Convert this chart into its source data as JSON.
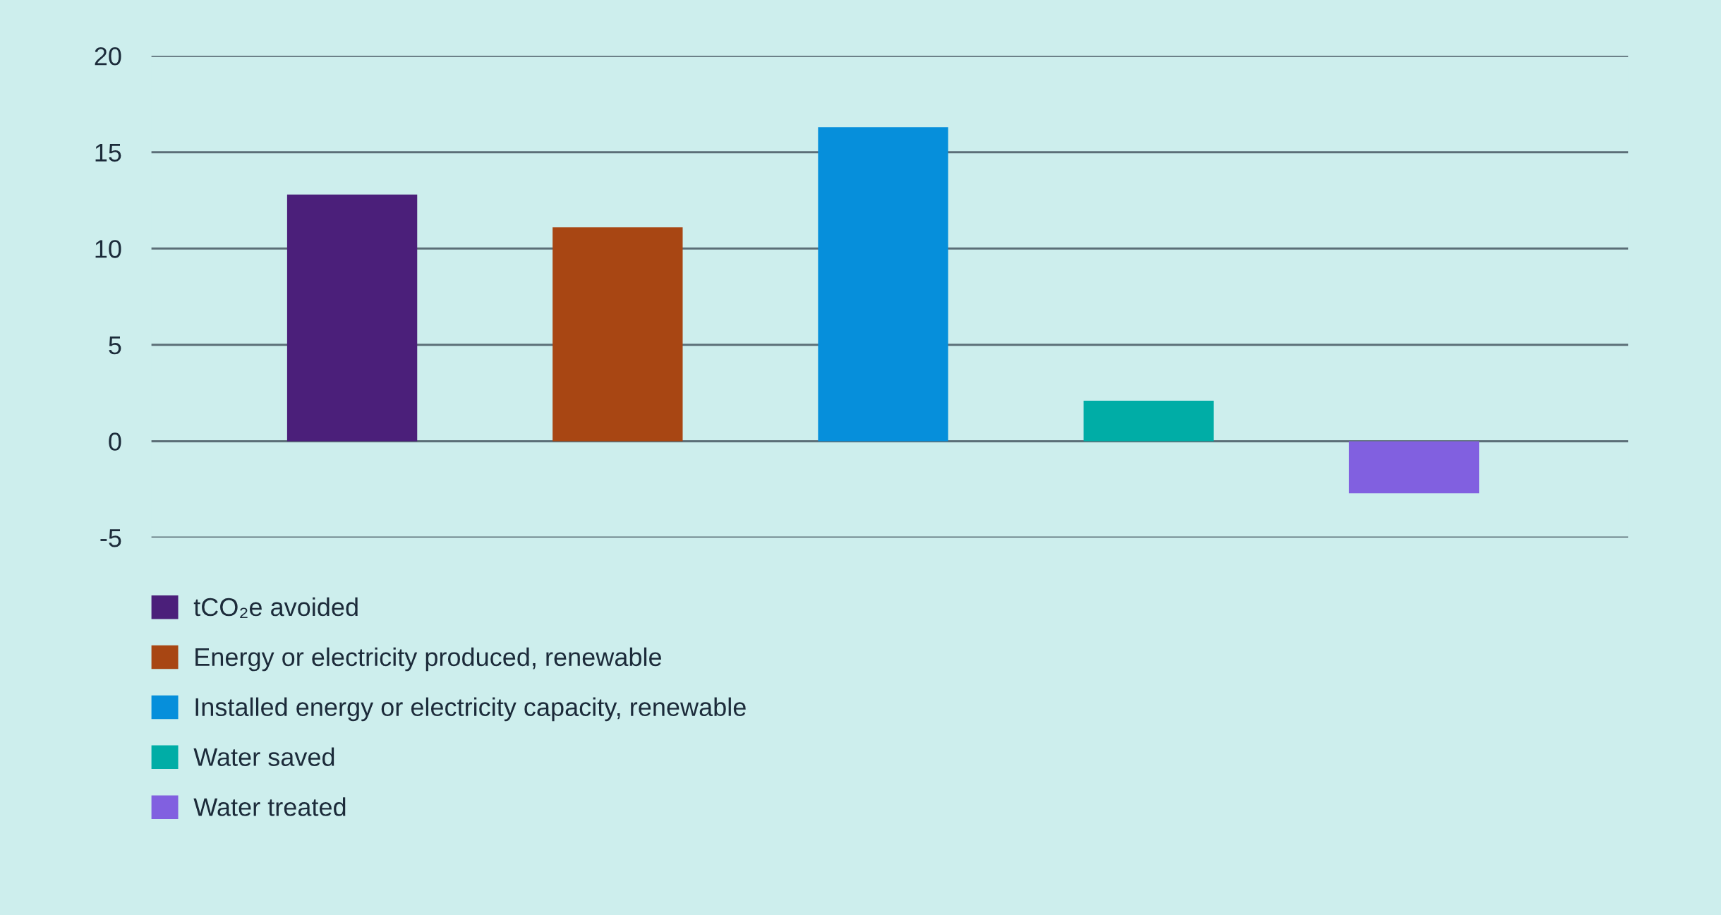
{
  "chart_data": {
    "type": "bar",
    "categories": [
      null,
      null,
      null,
      null,
      null
    ],
    "series": [
      {
        "name": "tCO₂e avoided",
        "color": "#4b1f7a",
        "values": [
          12.8,
          null,
          null,
          null,
          null
        ]
      },
      {
        "name": "Energy or electricity produced, renewable",
        "color": "#a84613",
        "values": [
          null,
          11.1,
          null,
          null,
          null
        ]
      },
      {
        "name": "Installed energy or electricity capacity, renewable",
        "color": "#068fdb",
        "values": [
          null,
          null,
          16.3,
          null,
          null
        ]
      },
      {
        "name": "Water saved",
        "color": "#00ada6",
        "values": [
          null,
          null,
          null,
          2.1,
          null
        ]
      },
      {
        "name": "Water treated",
        "color": "#8160e0",
        "values": [
          null,
          null,
          null,
          null,
          -2.7
        ]
      }
    ],
    "ylim": [
      -5,
      20
    ],
    "yticks": [
      -5,
      0,
      5,
      10,
      15,
      20
    ],
    "grid": "y",
    "legend": "bottom left",
    "tick_labels": "y"
  }
}
